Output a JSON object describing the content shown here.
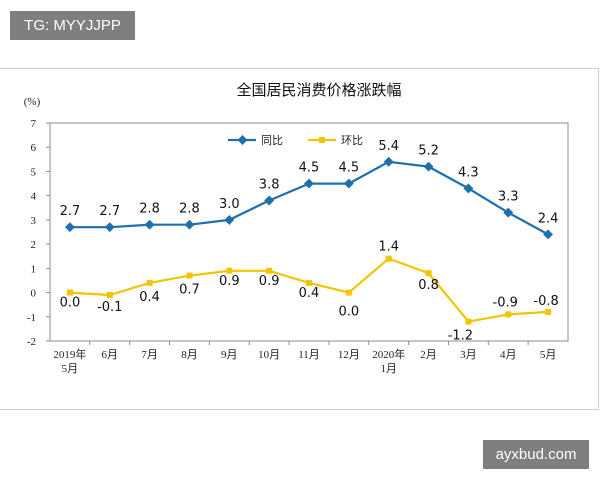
{
  "watermarks": {
    "top_left": "TG: MYYJJPP",
    "bottom_right": "ayxbud.com"
  },
  "chart_data": {
    "type": "line",
    "title": "全国居民消费价格涨跌幅",
    "ylabel": "(%)",
    "ylim": [
      -2,
      7
    ],
    "yticks": [
      -2,
      -1,
      0,
      1,
      2,
      3,
      4,
      5,
      6,
      7
    ],
    "categories": [
      "2019年\n5月",
      "6月",
      "7月",
      "8月",
      "9月",
      "10月",
      "11月",
      "12月",
      "2020年\n1月",
      "2月",
      "3月",
      "4月",
      "5月"
    ],
    "series": [
      {
        "name": "同比",
        "color": "#1f6fad",
        "values": [
          2.7,
          2.7,
          2.8,
          2.8,
          3.0,
          3.8,
          4.5,
          4.5,
          5.4,
          5.2,
          4.3,
          3.3,
          2.4
        ],
        "labels": [
          "2.7",
          "2.7",
          "2.8",
          "2.8",
          "3.0",
          "3.8",
          "4.5",
          "4.5",
          "5.4",
          "5.2",
          "4.3",
          "3.3",
          "2.4"
        ]
      },
      {
        "name": "环比",
        "color": "#f2c500",
        "values": [
          0.0,
          -0.1,
          0.4,
          0.7,
          0.9,
          0.9,
          0.4,
          0.0,
          1.4,
          0.8,
          -1.2,
          -0.9,
          -0.8
        ],
        "labels": [
          "0.0",
          "-0.1",
          "0.4",
          "0.7",
          "0.9",
          "0.9",
          "0.4",
          "0.0",
          "1.4",
          "0.8",
          "-1.2",
          "-0.9",
          "-0.8"
        ]
      }
    ],
    "legend_position": "top-center",
    "grid": false
  }
}
